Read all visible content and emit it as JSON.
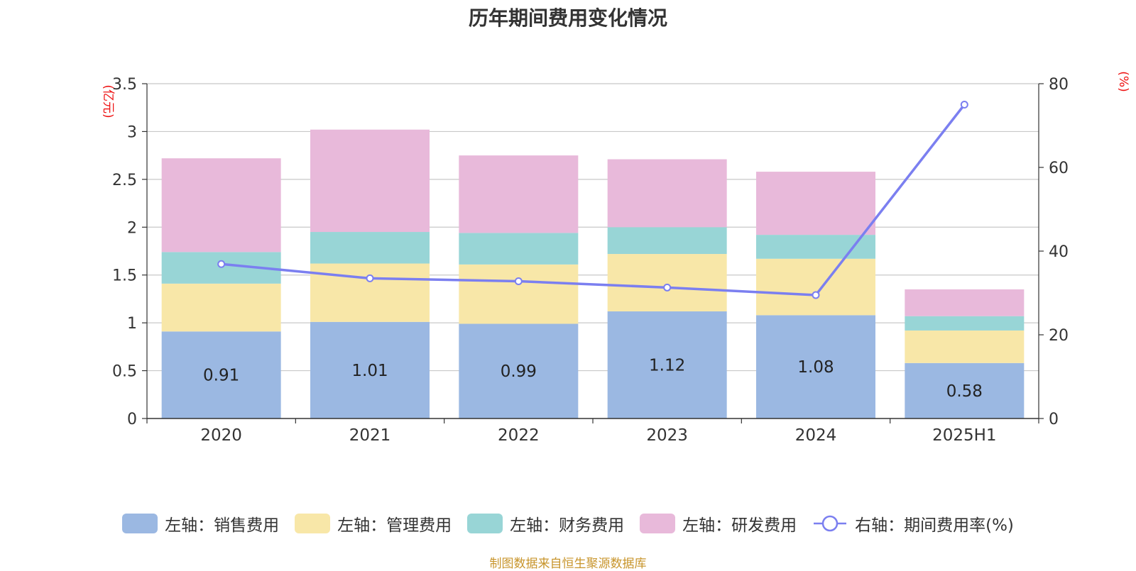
{
  "chart_data": {
    "type": "bar",
    "stacked": true,
    "title": "历年期间费用变化情况",
    "categories": [
      "2020",
      "2021",
      "2022",
      "2023",
      "2024",
      "2025H1"
    ],
    "left_axis": {
      "unit": "(亿元)",
      "ylim": [
        0,
        3.5
      ],
      "ticks": [
        "0",
        "0.5",
        "1",
        "1.5",
        "2",
        "2.5",
        "3",
        "3.5"
      ]
    },
    "right_axis": {
      "unit": "(%)",
      "ylim": [
        0,
        80
      ],
      "ticks": [
        "0",
        "20",
        "40",
        "60",
        "80"
      ]
    },
    "grid": true,
    "legend_position": "bottom",
    "series": [
      {
        "name": "左轴：销售费用",
        "axis": "left",
        "color": "#9bb8e2",
        "values": [
          0.91,
          1.01,
          0.99,
          1.12,
          1.08,
          0.58
        ],
        "labels": [
          "0.91",
          "1.01",
          "0.99",
          "1.12",
          "1.08",
          "0.58"
        ]
      },
      {
        "name": "左轴：管理费用",
        "axis": "left",
        "color": "#f8e7a8",
        "values": [
          0.5,
          0.61,
          0.62,
          0.6,
          0.59,
          0.34
        ]
      },
      {
        "name": "左轴：财务费用",
        "axis": "left",
        "color": "#98d5d6",
        "values": [
          0.33,
          0.33,
          0.33,
          0.28,
          0.25,
          0.15
        ]
      },
      {
        "name": "左轴：研发费用",
        "axis": "left",
        "color": "#e8b9da",
        "values": [
          0.98,
          1.07,
          0.81,
          0.71,
          0.66,
          0.28
        ]
      },
      {
        "name": "右轴：期间费用率(%)",
        "axis": "right",
        "type": "line",
        "color": "#7b7ff0",
        "values": [
          36.9,
          33.5,
          32.8,
          31.3,
          29.5,
          75.0
        ]
      }
    ]
  },
  "source": "制图数据来自恒生聚源数据库"
}
